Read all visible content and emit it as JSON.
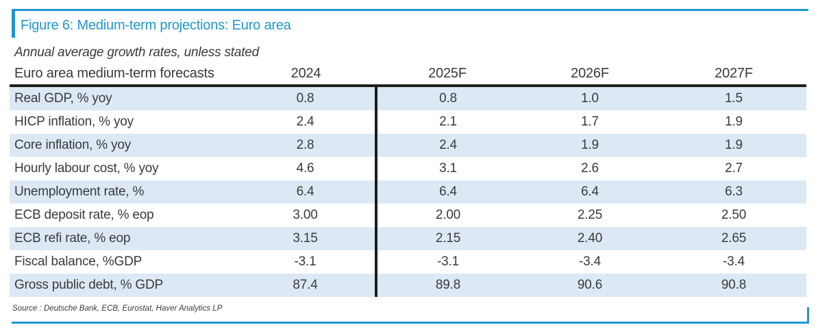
{
  "figure": {
    "title": "Figure 6: Medium-term projections: Euro area",
    "subtitle": "Annual average growth rates, unless stated",
    "source": "Source : Deutsche Bank, ECB, Eurostat, Haver Analytics LP"
  },
  "table": {
    "header": {
      "label": "Euro area medium-term forecasts",
      "col1": "2024",
      "col2": "2025F",
      "col3": "2026F",
      "col4": "2027F"
    },
    "rows": [
      {
        "label": "Real GDP, % yoy",
        "values": [
          "0.8",
          "0.8",
          "1.0",
          "1.5"
        ]
      },
      {
        "label": "HICP inflation, % yoy",
        "values": [
          "2.4",
          "2.1",
          "1.7",
          "1.9"
        ]
      },
      {
        "label": "Core inflation, % yoy",
        "values": [
          "2.8",
          "2.4",
          "1.9",
          "1.9"
        ]
      },
      {
        "label": "Hourly labour cost, % yoy",
        "values": [
          "4.6",
          "3.1",
          "2.6",
          "2.7"
        ]
      },
      {
        "label": "Unemployment rate, %",
        "values": [
          "6.4",
          "6.4",
          "6.4",
          "6.3"
        ]
      },
      {
        "label": "ECB deposit rate, % eop",
        "values": [
          "3.00",
          "2.00",
          "2.25",
          "2.50"
        ]
      },
      {
        "label": "ECB refi rate, % eop",
        "values": [
          "3.15",
          "2.15",
          "2.40",
          "2.65"
        ]
      },
      {
        "label": "Fiscal balance, %GDP",
        "values": [
          "-3.1",
          "-3.1",
          "-3.4",
          "-3.4"
        ]
      },
      {
        "label": "Gross public debt, % GDP",
        "values": [
          "87.4",
          "89.8",
          "90.6",
          "90.8"
        ]
      }
    ]
  },
  "colors": {
    "accent_blue": "#1e96d3",
    "row_shade_blue": "#dce9f5",
    "rule_black": "#1d1d1b",
    "text_gray": "#3a3a39"
  }
}
